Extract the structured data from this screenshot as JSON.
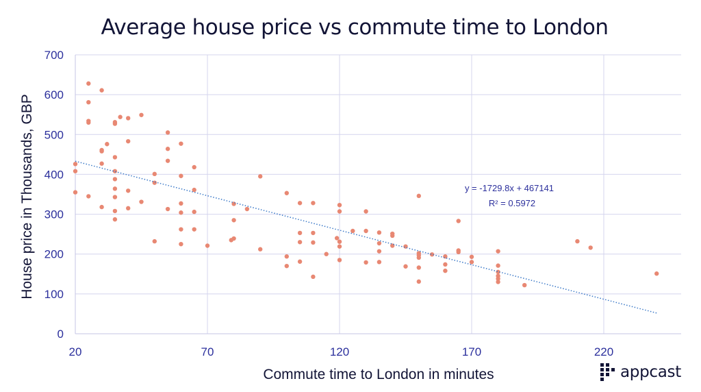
{
  "chart_data": {
    "type": "scatter",
    "title": "Average house price vs commute time to London",
    "xlabel": "Commute time to London in minutes",
    "ylabel": "House price in Thousands, GBP",
    "xlim": [
      20,
      250
    ],
    "ylim": [
      0,
      700
    ],
    "xticks": [
      20,
      70,
      120,
      170,
      220
    ],
    "yticks": [
      0,
      100,
      200,
      300,
      400,
      500,
      600,
      700
    ],
    "grid": true,
    "point_color": "#e88873",
    "trendline": {
      "equation": "y = -1729.8x + 467141",
      "r_squared": "R² = 0.5972",
      "start": [
        20,
        433
      ],
      "end": [
        240,
        52
      ],
      "color": "#3a78c7"
    },
    "points": [
      [
        20,
        426
      ],
      [
        20,
        408
      ],
      [
        20,
        355
      ],
      [
        25,
        628
      ],
      [
        25,
        581
      ],
      [
        25,
        534
      ],
      [
        25,
        530
      ],
      [
        25,
        345
      ],
      [
        30,
        611
      ],
      [
        30,
        461
      ],
      [
        30,
        458
      ],
      [
        30,
        427
      ],
      [
        30,
        318
      ],
      [
        32,
        476
      ],
      [
        35,
        531
      ],
      [
        35,
        527
      ],
      [
        35,
        443
      ],
      [
        35,
        408
      ],
      [
        35,
        388
      ],
      [
        35,
        364
      ],
      [
        35,
        343
      ],
      [
        35,
        308
      ],
      [
        35,
        287
      ],
      [
        37,
        544
      ],
      [
        40,
        541
      ],
      [
        40,
        483
      ],
      [
        40,
        359
      ],
      [
        40,
        315
      ],
      [
        45,
        549
      ],
      [
        45,
        331
      ],
      [
        50,
        401
      ],
      [
        50,
        379
      ],
      [
        50,
        232
      ],
      [
        55,
        505
      ],
      [
        55,
        464
      ],
      [
        55,
        434
      ],
      [
        55,
        313
      ],
      [
        60,
        477
      ],
      [
        60,
        396
      ],
      [
        60,
        327
      ],
      [
        60,
        304
      ],
      [
        60,
        262
      ],
      [
        60,
        225
      ],
      [
        65,
        418
      ],
      [
        65,
        361
      ],
      [
        65,
        306
      ],
      [
        65,
        262
      ],
      [
        70,
        221
      ],
      [
        80,
        326
      ],
      [
        80,
        285
      ],
      [
        80,
        239
      ],
      [
        79,
        235
      ],
      [
        85,
        313
      ],
      [
        90,
        395
      ],
      [
        90,
        212
      ],
      [
        100,
        353
      ],
      [
        100,
        194
      ],
      [
        100,
        170
      ],
      [
        105,
        328
      ],
      [
        105,
        253
      ],
      [
        105,
        230
      ],
      [
        105,
        181
      ],
      [
        110,
        328
      ],
      [
        110,
        253
      ],
      [
        110,
        229
      ],
      [
        110,
        143
      ],
      [
        115,
        200
      ],
      [
        119,
        240
      ],
      [
        120,
        323
      ],
      [
        120,
        307
      ],
      [
        120,
        231
      ],
      [
        120,
        219
      ],
      [
        120,
        185
      ],
      [
        125,
        258
      ],
      [
        130,
        307
      ],
      [
        130,
        258
      ],
      [
        130,
        179
      ],
      [
        135,
        254
      ],
      [
        135,
        227
      ],
      [
        135,
        207
      ],
      [
        135,
        180
      ],
      [
        140,
        251
      ],
      [
        140,
        246
      ],
      [
        140,
        221
      ],
      [
        145,
        219
      ],
      [
        145,
        169
      ],
      [
        150,
        346
      ],
      [
        150,
        202
      ],
      [
        150,
        197
      ],
      [
        150,
        191
      ],
      [
        150,
        166
      ],
      [
        150,
        131
      ],
      [
        155,
        199
      ],
      [
        160,
        194
      ],
      [
        160,
        174
      ],
      [
        160,
        158
      ],
      [
        165,
        283
      ],
      [
        165,
        209
      ],
      [
        165,
        205
      ],
      [
        170,
        193
      ],
      [
        170,
        180
      ],
      [
        180,
        207
      ],
      [
        180,
        171
      ],
      [
        180,
        155
      ],
      [
        180,
        145
      ],
      [
        180,
        138
      ],
      [
        180,
        130
      ],
      [
        190,
        122
      ],
      [
        210,
        232
      ],
      [
        215,
        216
      ],
      [
        240,
        151
      ]
    ]
  },
  "logo": {
    "text": "appcast"
  }
}
